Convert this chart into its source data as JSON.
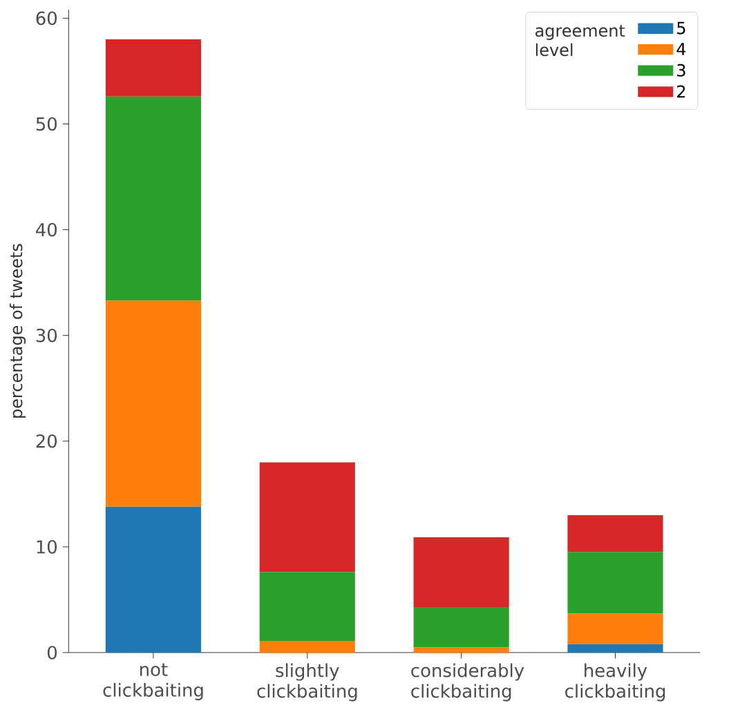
{
  "chart_data": {
    "type": "bar",
    "stacked": true,
    "ylabel": "percentage of tweets",
    "legend_title": "agreement level",
    "legend": "top right",
    "categories": [
      "not clickbaiting",
      "slightly clickbaiting",
      "considerably clickbaiting",
      "heavily clickbaiting"
    ],
    "series": [
      {
        "name": "5",
        "color": "#1f77b4",
        "values": [
          13.8,
          0,
          0,
          0.8
        ]
      },
      {
        "name": "4",
        "color": "#ff7f0e",
        "values": [
          19.5,
          1.1,
          0.5,
          2.9
        ]
      },
      {
        "name": "3",
        "color": "#2ca02c",
        "values": [
          19.3,
          6.5,
          3.8,
          5.8
        ]
      },
      {
        "name": "2",
        "color": "#d62728",
        "values": [
          5.4,
          10.4,
          6.6,
          3.5
        ]
      }
    ],
    "ylim": [
      0,
      60.8
    ],
    "yticks": [
      0,
      10,
      20,
      30,
      40,
      50,
      60
    ],
    "grid": false
  }
}
